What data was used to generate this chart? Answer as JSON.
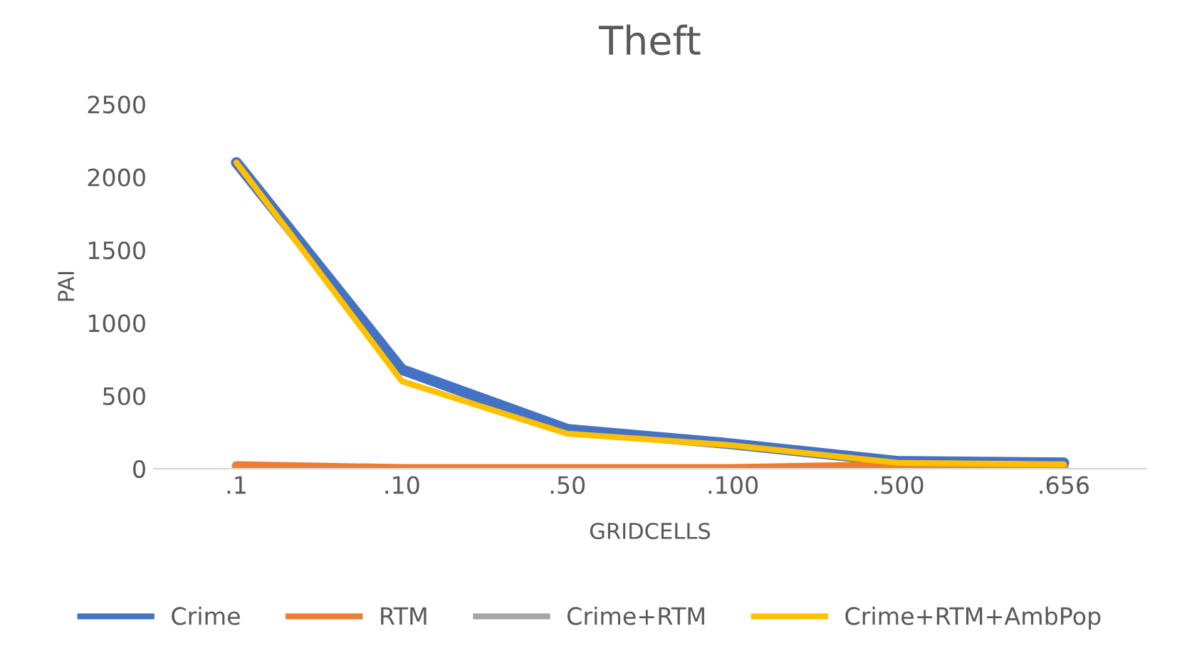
{
  "chart_data": {
    "type": "line",
    "title": "Theft",
    "xlabel": "GRIDCELLS",
    "ylabel": "PAI",
    "categories": [
      ".1",
      ".10",
      ".50",
      ".100",
      ".500",
      ".656"
    ],
    "series": [
      {
        "name": "Crime",
        "color": "#4472c4",
        "values": [
          2100,
          680,
          270,
          170,
          50,
          40
        ]
      },
      {
        "name": "RTM",
        "color": "#ed7d31",
        "values": [
          20,
          0,
          0,
          0,
          20,
          10
        ]
      },
      {
        "name": "Crime+RTM",
        "color": "#a5a5a5",
        "values": [
          null,
          null,
          null,
          null,
          null,
          null
        ]
      },
      {
        "name": "Crime+RTM+AmbPop",
        "color": "#ffc000",
        "values": [
          2100,
          600,
          240,
          160,
          40,
          30
        ]
      }
    ],
    "ylim": [
      0,
      2500
    ],
    "yticks": [
      0,
      500,
      1000,
      1500,
      2000,
      2500
    ],
    "grid": false,
    "legend": "bottom"
  }
}
